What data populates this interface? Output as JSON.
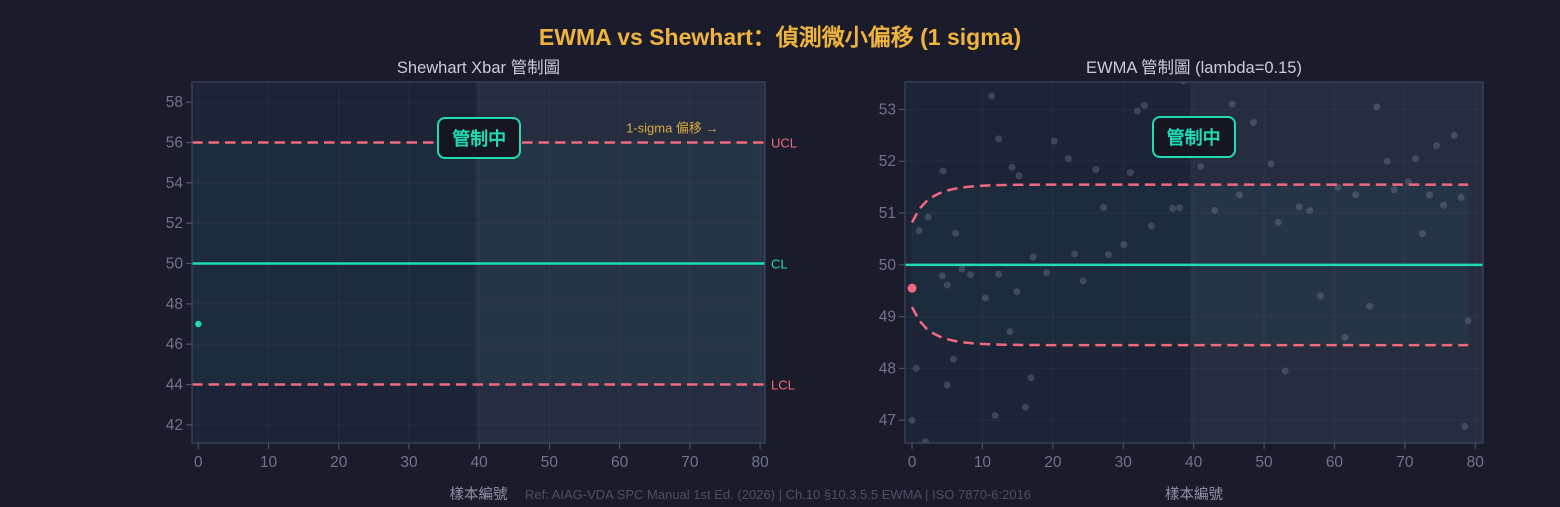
{
  "title": "EWMA vs Shewhart：偵測微小偏移 (1 sigma)",
  "footer": "Ref: AIAG-VDA SPC Manual 1st Ed. (2026) | Ch.10 §10.3.5.5 EWMA | ISO 7870-6:2016",
  "colors": {
    "page_bg": "#1b1c2b",
    "plot_bg": "#1d2438",
    "shade": "rgba(215,225,245,0.05)",
    "band": "rgba(45,224,190,0.045)",
    "grid": "rgba(165,175,205,0.06)",
    "axis": "#3e4563",
    "tick": "#4a5070",
    "tick_label": "#6f7490",
    "title": "#f0b43e",
    "subtitle": "#c9cdda",
    "pink": "#f2697e",
    "teal": "#1fdcb4",
    "scatter": "rgba(150,160,190,0.27)",
    "xlabel": "#8e92a6",
    "footer_text": "#4c5066",
    "annotation": "#d9a93f",
    "badge_bg": "#151622"
  },
  "chart_data": [
    {
      "type": "line",
      "title": "Shewhart Xbar 管制圖",
      "xlabel": "樣本編號",
      "xticks": [
        0,
        10,
        20,
        30,
        40,
        50,
        60,
        70,
        80
      ],
      "yticks": [
        42,
        44,
        46,
        48,
        50,
        52,
        54,
        56,
        58
      ],
      "xlim": [
        -0.9,
        80.7
      ],
      "ylim": [
        41.1,
        59.0
      ],
      "center_line": 50,
      "ucl": 56,
      "lcl": 44,
      "line_labels": {
        "ucl": "UCL",
        "cl": "CL",
        "lcl": "LCL"
      },
      "status_badge": "管制中",
      "badge_pos": {
        "x": 40,
        "y": 56.2
      },
      "annotation": {
        "text": "1-sigma 偏移 →",
        "x": 67.5,
        "y": 56.75
      },
      "shift_start": 39.5,
      "points": [
        {
          "x": 0,
          "y": 47.0,
          "color": "teal",
          "r": 3.2
        }
      ]
    },
    {
      "type": "line",
      "title": "EWMA 管制圖 (lambda=0.15)",
      "xlabel": "樣本編號",
      "xticks": [
        0,
        10,
        20,
        30,
        40,
        50,
        60,
        70,
        80
      ],
      "yticks": [
        47,
        48,
        49,
        50,
        51,
        52,
        53
      ],
      "xlim": [
        -1.0,
        81.1
      ],
      "ylim": [
        46.56,
        53.53
      ],
      "center_line": 50,
      "lambda": 0.15,
      "limit_width": 1.55,
      "n_samples": 80,
      "status_badge": "管制中",
      "badge_pos": {
        "x": 40,
        "y": 52.47
      },
      "shift_start": 39.5,
      "points": [
        {
          "x": 0,
          "y": 49.55,
          "color": "pink",
          "r": 4.5
        }
      ],
      "raw_samples": [
        [
          0,
          47.0
        ],
        [
          0.6,
          48.0
        ],
        [
          1.0,
          50.66
        ],
        [
          1.9,
          46.58
        ],
        [
          2.3,
          50.92
        ],
        [
          4.3,
          49.79
        ],
        [
          4.4,
          51.81
        ],
        [
          5,
          49.61
        ],
        [
          5,
          47.68
        ],
        [
          5.9,
          48.18
        ],
        [
          6.2,
          50.61
        ],
        [
          7.1,
          49.92
        ],
        [
          8.3,
          49.81
        ],
        [
          10.4,
          49.36
        ],
        [
          11.3,
          53.26
        ],
        [
          11.8,
          47.09
        ],
        [
          12.3,
          52.43
        ],
        [
          12.3,
          49.82
        ],
        [
          13.9,
          48.71
        ],
        [
          14.2,
          51.88
        ],
        [
          14.9,
          49.48
        ],
        [
          15.2,
          51.72
        ],
        [
          16.1,
          47.25
        ],
        [
          16.9,
          47.82
        ],
        [
          17.2,
          50.15
        ],
        [
          19.1,
          49.85
        ],
        [
          20.2,
          52.39
        ],
        [
          22.2,
          52.05
        ],
        [
          23.1,
          50.21
        ],
        [
          24.3,
          49.69
        ],
        [
          26.1,
          51.84
        ],
        [
          27.2,
          51.11
        ],
        [
          27.9,
          50.2
        ],
        [
          30.1,
          50.39
        ],
        [
          31,
          51.78
        ],
        [
          32,
          52.97
        ],
        [
          33,
          53.08
        ],
        [
          34,
          50.75
        ],
        [
          37,
          51.09
        ],
        [
          38,
          51.1
        ],
        [
          38.5,
          53.55
        ],
        [
          41,
          51.9
        ],
        [
          43,
          51.05
        ],
        [
          45.5,
          53.1
        ],
        [
          46.5,
          51.35
        ],
        [
          48.5,
          52.75
        ],
        [
          51,
          51.95
        ],
        [
          52,
          50.82
        ],
        [
          53,
          47.95
        ],
        [
          55,
          51.12
        ],
        [
          56.5,
          51.05
        ],
        [
          58,
          49.4
        ],
        [
          59.5,
          53.6
        ],
        [
          60.5,
          51.5
        ],
        [
          61.5,
          48.6
        ],
        [
          63,
          51.35
        ],
        [
          65,
          49.2
        ],
        [
          66,
          53.05
        ],
        [
          67.5,
          52.0
        ],
        [
          68.5,
          51.45
        ],
        [
          70.5,
          51.6
        ],
        [
          71.5,
          52.05
        ],
        [
          72.5,
          50.6
        ],
        [
          73.5,
          51.35
        ],
        [
          74.5,
          52.3
        ],
        [
          75.5,
          51.15
        ],
        [
          77,
          52.5
        ],
        [
          78,
          51.3
        ],
        [
          79,
          48.92
        ],
        [
          78.5,
          46.88
        ]
      ]
    }
  ]
}
